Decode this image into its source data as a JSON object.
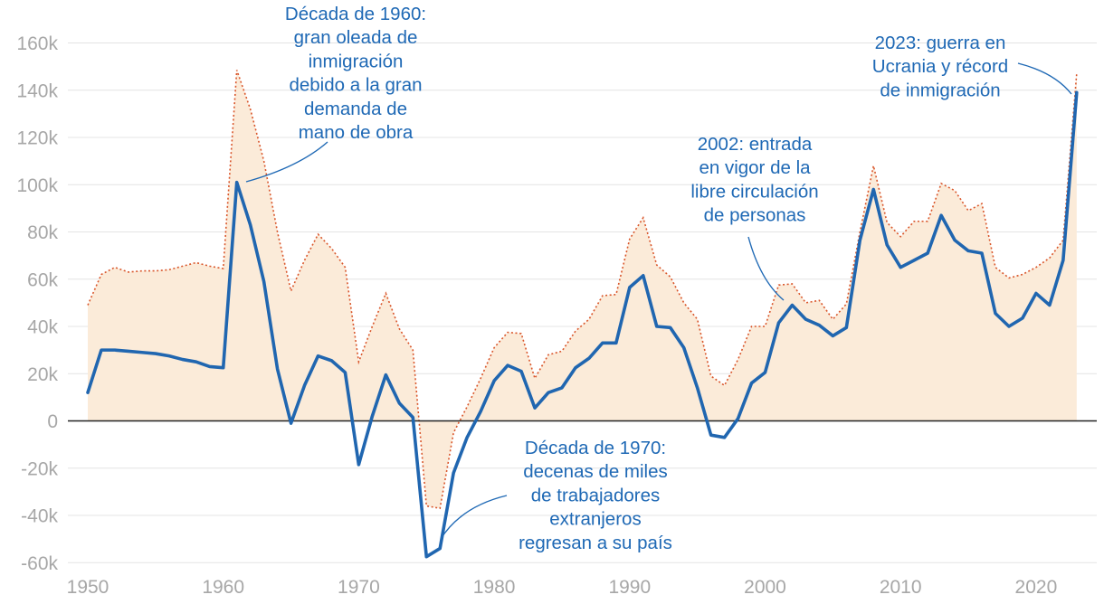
{
  "chart_data": {
    "type": "area",
    "title": "",
    "xlabel": "",
    "ylabel": "",
    "xlim": [
      1950,
      2023
    ],
    "ylim": [
      -60000,
      160000
    ],
    "x_ticks": [
      1950,
      1960,
      1970,
      1980,
      1990,
      2000,
      2010,
      2020
    ],
    "y_ticks": [
      {
        "value": -60000,
        "label": "-60k"
      },
      {
        "value": -40000,
        "label": "-40k"
      },
      {
        "value": -20000,
        "label": "-20k"
      },
      {
        "value": 0,
        "label": "0"
      },
      {
        "value": 20000,
        "label": "20k"
      },
      {
        "value": 40000,
        "label": "40k"
      },
      {
        "value": 60000,
        "label": "60k"
      },
      {
        "value": 80000,
        "label": "80k"
      },
      {
        "value": 100000,
        "label": "100k"
      },
      {
        "value": 120000,
        "label": "120k"
      },
      {
        "value": 140000,
        "label": "140k"
      },
      {
        "value": 160000,
        "label": "160k"
      }
    ],
    "x": [
      1950,
      1951,
      1952,
      1953,
      1954,
      1955,
      1956,
      1957,
      1958,
      1959,
      1960,
      1961,
      1962,
      1963,
      1964,
      1965,
      1966,
      1967,
      1968,
      1969,
      1970,
      1971,
      1972,
      1973,
      1974,
      1975,
      1976,
      1977,
      1978,
      1979,
      1980,
      1981,
      1982,
      1983,
      1984,
      1985,
      1986,
      1987,
      1988,
      1989,
      1990,
      1991,
      1992,
      1993,
      1994,
      1995,
      1996,
      1997,
      1998,
      1999,
      2000,
      2001,
      2002,
      2003,
      2004,
      2005,
      2006,
      2007,
      2008,
      2009,
      2010,
      2011,
      2012,
      2013,
      2014,
      2015,
      2016,
      2017,
      2018,
      2019,
      2020,
      2021,
      2022,
      2023
    ],
    "series": [
      {
        "name": "area",
        "style": "filled area with dotted outline",
        "color": "#d9562b",
        "fill": "#fbebd9",
        "values": [
          49000,
          62000,
          65000,
          63000,
          63500,
          63500,
          64000,
          65500,
          67000,
          65500,
          64500,
          148500,
          132000,
          110000,
          80000,
          55000,
          68000,
          79000,
          73000,
          65000,
          25000,
          40000,
          54000,
          39000,
          30000,
          -36000,
          -37000,
          -5000,
          6000,
          18000,
          31000,
          37500,
          37000,
          18000,
          28000,
          29500,
          38000,
          43000,
          53000,
          53500,
          77000,
          86000,
          66000,
          61000,
          50000,
          43000,
          19000,
          15000,
          26000,
          40000,
          40000,
          57500,
          58000,
          50000,
          51000,
          43000,
          49500,
          80000,
          108000,
          84000,
          78000,
          84500,
          84500,
          100500,
          97500,
          89000,
          92000,
          65000,
          60500,
          62000,
          65000,
          69000,
          76500,
          147000
        ]
      },
      {
        "name": "linea",
        "style": "solid line",
        "color": "#2066b0",
        "values": [
          12000,
          30000,
          30000,
          29500,
          29000,
          28500,
          27500,
          26000,
          25000,
          23000,
          22500,
          101000,
          83000,
          59000,
          22000,
          -1000,
          15000,
          27500,
          25500,
          20500,
          -18500,
          2000,
          19500,
          7500,
          1500,
          -57500,
          -54000,
          -22000,
          -7000,
          4000,
          17000,
          23500,
          21000,
          5500,
          12000,
          14000,
          22500,
          26500,
          33000,
          33000,
          56500,
          61500,
          40000,
          39500,
          31000,
          14000,
          -6000,
          -7000,
          1000,
          16000,
          20500,
          41500,
          49000,
          43000,
          40500,
          36000,
          39500,
          76500,
          98000,
          74500,
          65000,
          68000,
          71000,
          87000,
          76500,
          72000,
          71000,
          45500,
          40000,
          43500,
          54000,
          49000,
          68000,
          139000
        ]
      }
    ],
    "annotations": [
      {
        "id": "a1960",
        "year": 1961,
        "value": 101000,
        "lines": [
          "Década de 1960:",
          "gran oleada de",
          "inmigración",
          "debido a la gran",
          "demanda de",
          "mano de obra"
        ]
      },
      {
        "id": "a1970",
        "year": 1976,
        "value": -48000,
        "lines": [
          "Década de 1970:",
          "decenas de miles",
          "de trabajadores",
          "extranjeros",
          "regresan a su país"
        ]
      },
      {
        "id": "a2002",
        "year": 2002,
        "value": 48000,
        "lines": [
          "2002: entrada",
          "en vigor de la",
          "libre circulación",
          "de personas"
        ]
      },
      {
        "id": "a2023",
        "year": 2023,
        "value": 140000,
        "lines": [
          "2023: guerra en",
          "Ucrania y récord",
          "de inmigración"
        ]
      }
    ],
    "colors": {
      "line": "#2066b0",
      "dotted": "#d9562b",
      "fill": "#fbebd9",
      "annotation": "#1f69b5",
      "tick": "#a7a7a7",
      "grid": "#e4e4e4",
      "zero": "#222222"
    }
  }
}
